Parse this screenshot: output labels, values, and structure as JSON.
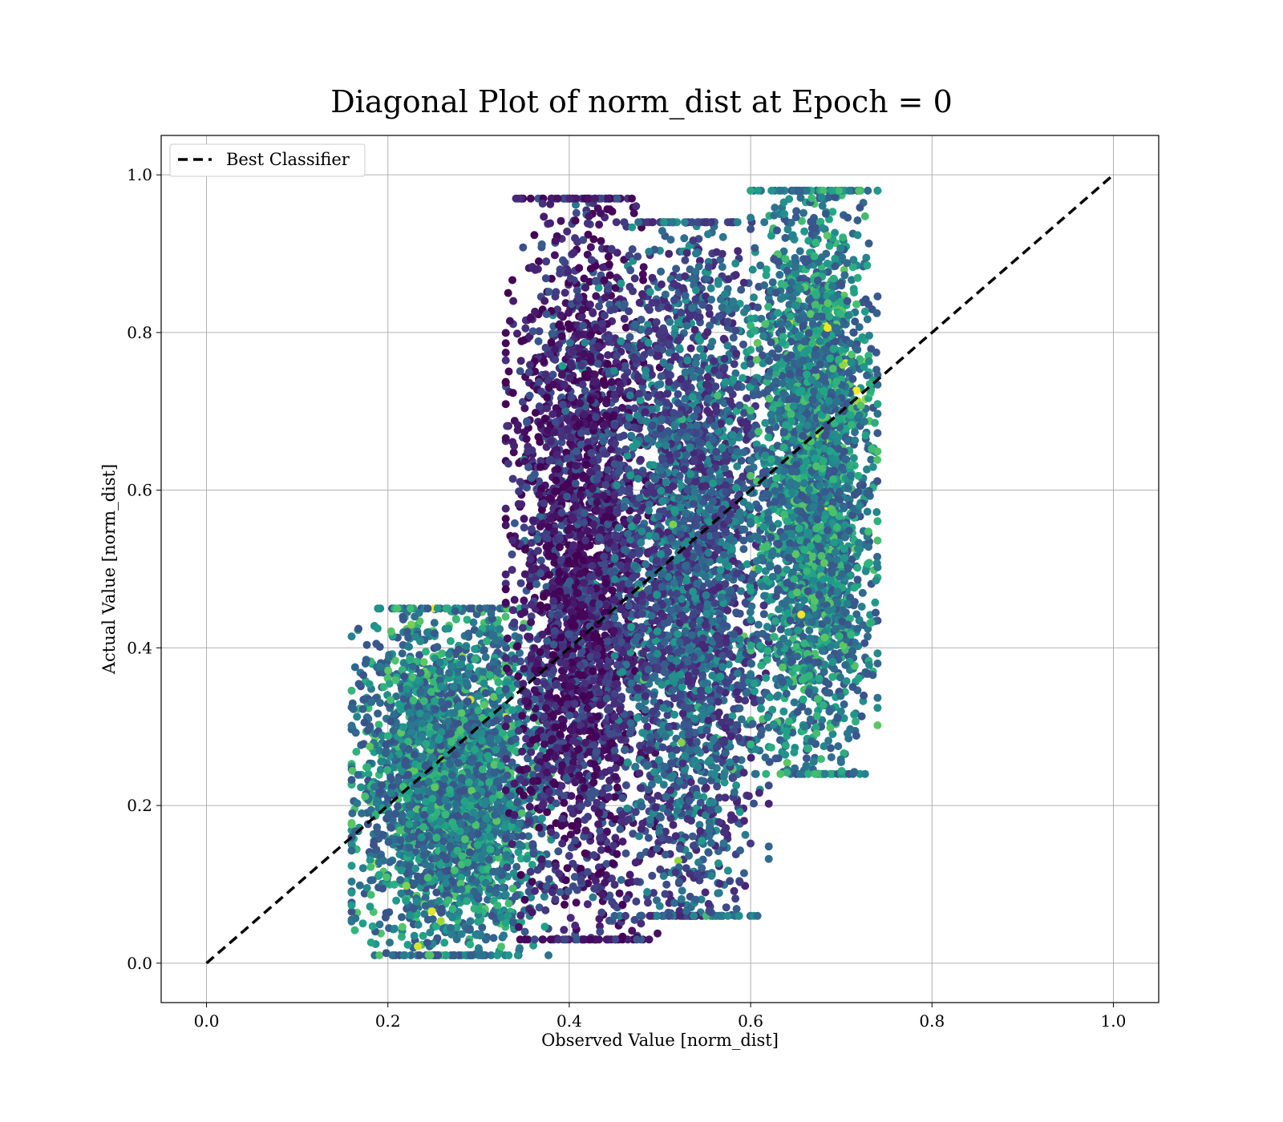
{
  "chart_data": {
    "type": "scatter",
    "title": "Diagonal Plot of norm_dist at Epoch = 0",
    "xlabel": "Observed Value [norm_dist]",
    "ylabel": "Actual Value [norm_dist]",
    "xlim": [
      -0.05,
      1.05
    ],
    "ylim": [
      -0.05,
      1.05
    ],
    "xticks": [
      0.0,
      0.2,
      0.4,
      0.6,
      0.8,
      1.0
    ],
    "yticks": [
      0.0,
      0.2,
      0.4,
      0.6,
      0.8,
      1.0
    ],
    "xtick_labels": [
      "0.0",
      "0.2",
      "0.4",
      "0.6",
      "0.8",
      "1.0"
    ],
    "ytick_labels": [
      "0.0",
      "0.2",
      "0.4",
      "0.6",
      "0.8",
      "1.0"
    ],
    "grid": true,
    "legend_position": "top-left",
    "colormap": "viridis",
    "reference_line": {
      "name": "Best Classifier",
      "x": [
        0.0,
        1.0
      ],
      "y": [
        0.0,
        1.0
      ],
      "style": "dashed",
      "color": "#000000"
    },
    "scatter_clusters": [
      {
        "x_range": [
          0.16,
          0.38
        ],
        "y_range": [
          0.01,
          0.45
        ],
        "color_level": [
          0.25,
          0.75
        ]
      },
      {
        "x_range": [
          0.33,
          0.5
        ],
        "y_range": [
          0.03,
          0.97
        ],
        "color_level": [
          0.0,
          0.3
        ]
      },
      {
        "x_range": [
          0.45,
          0.62
        ],
        "y_range": [
          0.06,
          0.94
        ],
        "color_level": [
          0.1,
          0.55
        ]
      },
      {
        "x_range": [
          0.6,
          0.74
        ],
        "y_range": [
          0.24,
          0.98
        ],
        "color_level": [
          0.25,
          0.75
        ]
      }
    ],
    "point_count_shown": 12000
  }
}
